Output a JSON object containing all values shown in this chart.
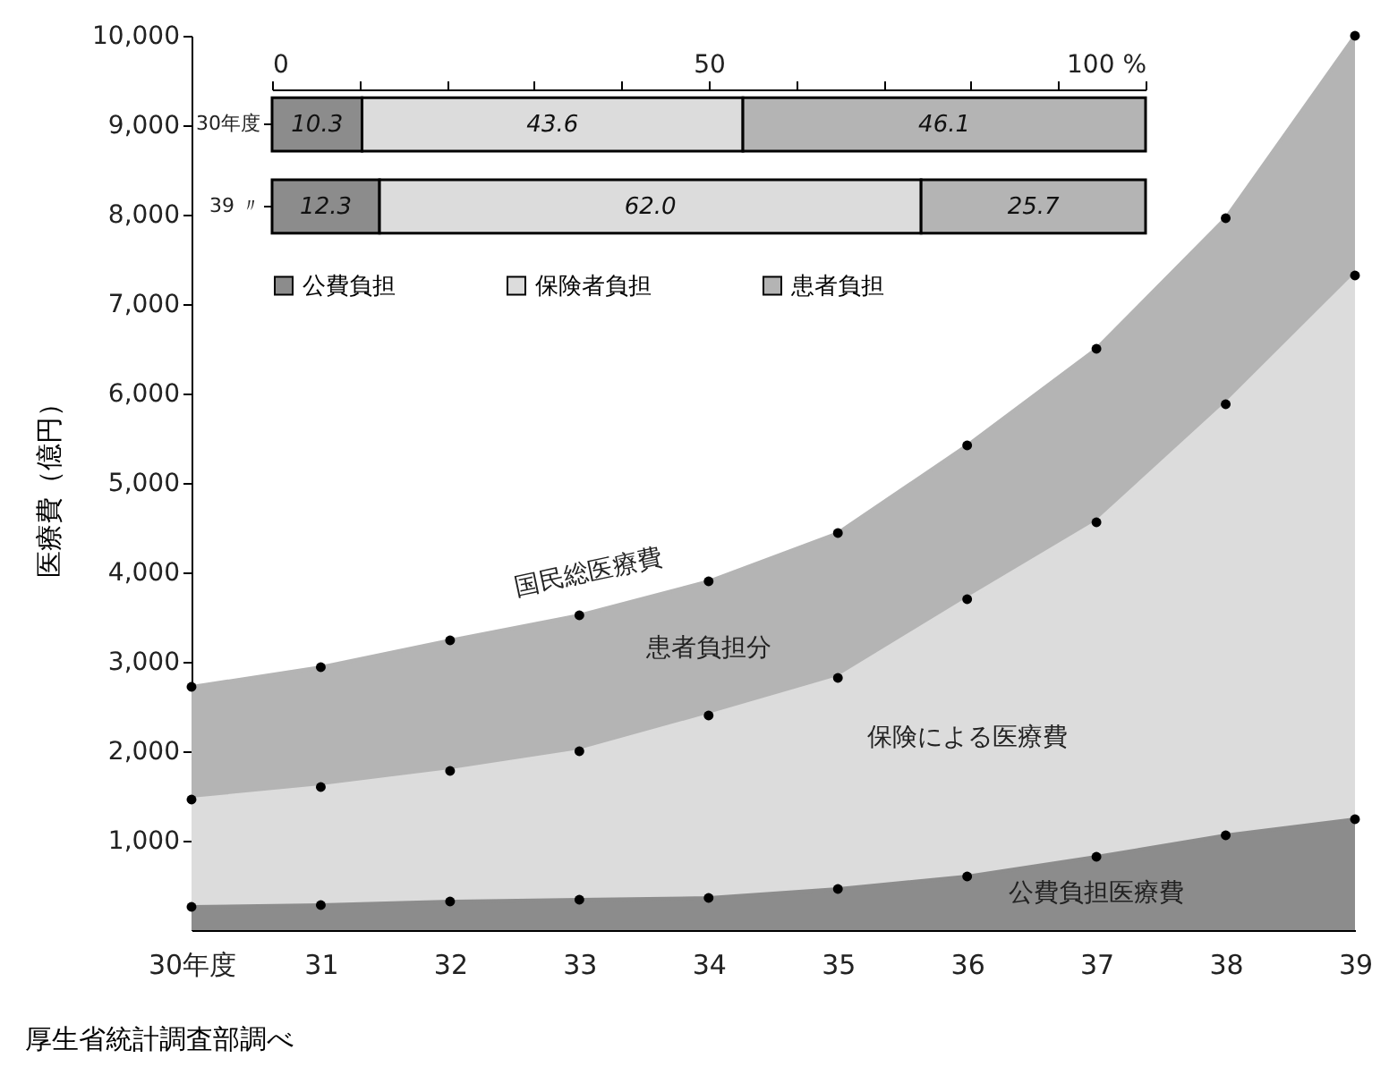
{
  "chart_data": [
    {
      "type": "area",
      "stacked": true,
      "ylabel": "医療費（億円）",
      "marker": "circle",
      "categories": [
        "30年度",
        "31",
        "32",
        "33",
        "34",
        "35",
        "36",
        "37",
        "38",
        "39"
      ],
      "series": [
        {
          "name": "公費負担医療費",
          "color": "#8c8c8c",
          "values": [
            260,
            280,
            320,
            340,
            360,
            460,
            600,
            820,
            1060,
            1240
          ]
        },
        {
          "name": "保険による医療費",
          "color": "#dcdcdc",
          "values": [
            1200,
            1320,
            1460,
            1660,
            2040,
            2360,
            3100,
            3740,
            4820,
            6080
          ]
        },
        {
          "name": "患者負担分",
          "color": "#b4b4b4",
          "values": [
            1260,
            1340,
            1460,
            1520,
            1500,
            1620,
            1720,
            1940,
            2080,
            2680
          ]
        }
      ],
      "ylim": [
        0,
        10000
      ],
      "yticks": [
        {
          "value": 1000,
          "label": "1,000"
        },
        {
          "value": 2000,
          "label": "2,000"
        },
        {
          "value": 3000,
          "label": "3,000"
        },
        {
          "value": 4000,
          "label": "4,000"
        },
        {
          "value": 5000,
          "label": "5,000"
        },
        {
          "value": 6000,
          "label": "6,000"
        },
        {
          "value": 7000,
          "label": "7,000"
        },
        {
          "value": 8000,
          "label": "8,000"
        },
        {
          "value": 9000,
          "label": "9,000"
        },
        {
          "value": 10000,
          "label": "10,000"
        }
      ],
      "annotations": [
        {
          "text": "国民総医療費",
          "x": "33",
          "y": 3520
        },
        "厚生省統計調査部調べ"
      ]
    },
    {
      "type": "bar",
      "orientation": "horizontal",
      "stacked": true,
      "legend": "bottom",
      "categories": [
        "30年度",
        "39 〃"
      ],
      "series": [
        {
          "name": "公費負担",
          "color": "#8c8c8c",
          "values": [
            10.3,
            12.3
          ],
          "value_labels": [
            "10.3",
            "12.3"
          ]
        },
        {
          "name": "保険者負担",
          "color": "#dcdcdc",
          "values": [
            43.6,
            62.0
          ],
          "value_labels": [
            "43.6",
            "62.0"
          ]
        },
        {
          "name": "患者負担",
          "color": "#b4b4b4",
          "values": [
            46.1,
            25.7
          ],
          "value_labels": [
            "46.1",
            "25.7"
          ]
        }
      ],
      "xlim": [
        0,
        100
      ],
      "xticks": [
        0,
        {
          "value": 10,
          "label": null
        },
        {
          "value": 20,
          "label": null
        },
        {
          "value": 30,
          "label": null
        },
        {
          "value": 40,
          "label": null
        },
        50,
        {
          "value": 60,
          "label": null
        },
        {
          "value": 70,
          "label": null
        },
        {
          "value": 80,
          "label": null
        },
        {
          "value": 90,
          "label": null
        },
        {
          "value": 100,
          "label": "100 %"
        }
      ]
    }
  ]
}
